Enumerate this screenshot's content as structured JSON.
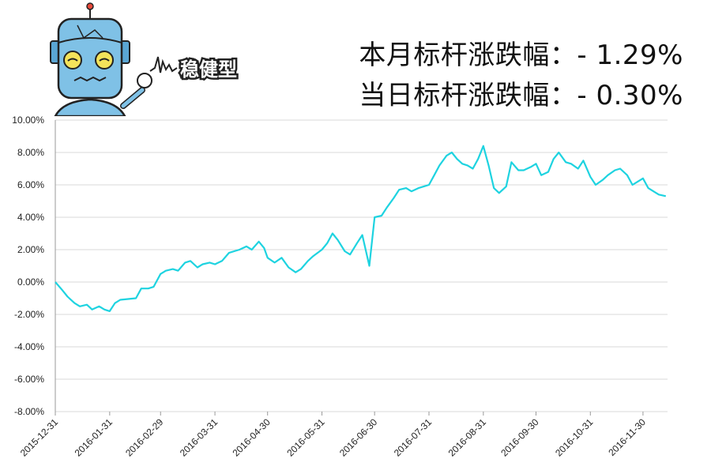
{
  "header": {
    "month_label": "本月标杆涨跌幅：",
    "month_value": "- 1.29%",
    "day_label": "当日标杆涨跌幅：",
    "day_value": "- 0.30%",
    "logo_text": "稳健型"
  },
  "colors": {
    "line": "#1ed3e0",
    "grid": "#d9d9d9",
    "axis": "#9a9a9a",
    "mascot_body": "#7fc1e6",
    "mascot_outline": "#222222"
  },
  "chart_data": {
    "type": "line",
    "title": "",
    "xlabel": "",
    "ylabel": "",
    "ylim": [
      -8,
      10
    ],
    "grid": true,
    "y_ticks": [
      "10.00%",
      "8.00%",
      "6.00%",
      "4.00%",
      "2.00%",
      "0.00%",
      "-2.00%",
      "-4.00%",
      "-6.00%",
      "-8.00%"
    ],
    "y_tick_values": [
      10,
      8,
      6,
      4,
      2,
      0,
      -2,
      -4,
      -6,
      -8
    ],
    "x_ticks": [
      "2015-12-31",
      "2016-01-31",
      "2016-02-29",
      "2016-03-31",
      "2016-04-30",
      "2016-05-31",
      "2016-06-30",
      "2016-07-31",
      "2016-08-31",
      "2016-09-30",
      "2016-10-31",
      "2016-11-30"
    ],
    "series": [
      {
        "x": [
          "2015-12-31",
          "2016-01-04",
          "2016-01-07",
          "2016-01-11",
          "2016-01-14",
          "2016-01-18",
          "2016-01-21",
          "2016-01-25",
          "2016-01-28",
          "2016-01-31",
          "2016-02-03",
          "2016-02-06",
          "2016-02-15",
          "2016-02-18",
          "2016-02-22",
          "2016-02-25",
          "2016-02-29",
          "2016-03-03",
          "2016-03-07",
          "2016-03-10",
          "2016-03-14",
          "2016-03-17",
          "2016-03-21",
          "2016-03-24",
          "2016-03-28",
          "2016-03-31",
          "2016-04-04",
          "2016-04-08",
          "2016-04-11",
          "2016-04-14",
          "2016-04-18",
          "2016-04-21",
          "2016-04-25",
          "2016-04-28",
          "2016-04-30",
          "2016-05-04",
          "2016-05-08",
          "2016-05-12",
          "2016-05-16",
          "2016-05-19",
          "2016-05-23",
          "2016-05-26",
          "2016-05-31",
          "2016-06-03",
          "2016-06-06",
          "2016-06-09",
          "2016-06-13",
          "2016-06-16",
          "2016-06-20",
          "2016-06-23",
          "2016-06-27",
          "2016-06-30",
          "2016-07-04",
          "2016-07-07",
          "2016-07-11",
          "2016-07-14",
          "2016-07-18",
          "2016-07-21",
          "2016-07-25",
          "2016-07-28",
          "2016-07-31",
          "2016-08-03",
          "2016-08-06",
          "2016-08-10",
          "2016-08-13",
          "2016-08-16",
          "2016-08-19",
          "2016-08-22",
          "2016-08-25",
          "2016-08-28",
          "2016-08-31",
          "2016-09-03",
          "2016-09-06",
          "2016-09-09",
          "2016-09-13",
          "2016-09-16",
          "2016-09-20",
          "2016-09-23",
          "2016-09-27",
          "2016-09-30",
          "2016-10-03",
          "2016-10-07",
          "2016-10-10",
          "2016-10-13",
          "2016-10-17",
          "2016-10-20",
          "2016-10-24",
          "2016-10-27",
          "2016-10-31",
          "2016-11-03",
          "2016-11-07",
          "2016-11-10",
          "2016-11-14",
          "2016-11-17",
          "2016-11-21",
          "2016-11-24",
          "2016-11-27",
          "2016-11-30",
          "2016-12-03",
          "2016-12-06",
          "2016-12-09",
          "2016-12-13"
        ],
        "values": [
          0.0,
          -0.5,
          -0.9,
          -1.3,
          -1.5,
          -1.4,
          -1.7,
          -1.5,
          -1.7,
          -1.8,
          -1.3,
          -1.1,
          -1.0,
          -0.4,
          -0.4,
          -0.3,
          0.5,
          0.7,
          0.8,
          0.7,
          1.2,
          1.3,
          0.9,
          1.1,
          1.2,
          1.1,
          1.3,
          1.8,
          1.9,
          2.0,
          2.2,
          2.0,
          2.5,
          2.1,
          1.5,
          1.2,
          1.5,
          0.9,
          0.6,
          0.8,
          1.3,
          1.6,
          2.0,
          2.4,
          3.0,
          2.6,
          1.9,
          1.7,
          2.4,
          2.9,
          1.0,
          4.0,
          4.1,
          4.6,
          5.2,
          5.7,
          5.8,
          5.6,
          5.8,
          5.9,
          6.0,
          6.6,
          7.2,
          7.8,
          8.0,
          7.6,
          7.3,
          7.2,
          7.0,
          7.6,
          8.4,
          7.2,
          5.8,
          5.5,
          5.9,
          7.4,
          6.9,
          6.9,
          7.1,
          7.3,
          6.6,
          6.8,
          7.6,
          8.0,
          7.4,
          7.3,
          7.0,
          7.5,
          6.5,
          6.0,
          6.3,
          6.6,
          6.9,
          7.0,
          6.6,
          6.0,
          6.2,
          6.4,
          5.8,
          5.6,
          5.4,
          5.3
        ]
      }
    ]
  }
}
